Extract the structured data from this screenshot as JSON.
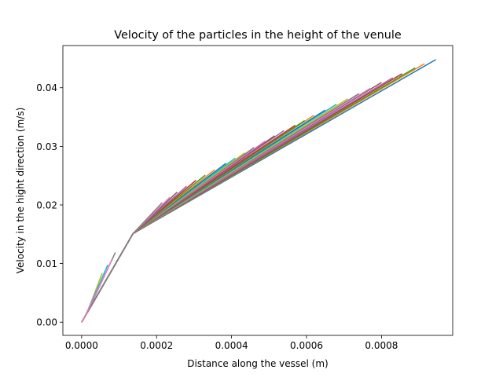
{
  "chart_data": {
    "type": "line",
    "title": "Velocity of the particles in the height of the venule",
    "xlabel": "Distance along the vessel (m)",
    "ylabel": "Velocity in the hight direction (m/s)",
    "xlim": [
      -5e-05,
      0.00099
    ],
    "ylim": [
      -0.00225,
      0.0472
    ],
    "xticks": [
      0,
      0.0002,
      0.0004,
      0.0006,
      0.0008
    ],
    "xtick_labels": [
      "0.0000",
      "0.0002",
      "0.0004",
      "0.0006",
      "0.0008"
    ],
    "yticks": [
      0,
      0.01,
      0.02,
      0.03,
      0.04
    ],
    "ytick_labels": [
      "0.00",
      "0.01",
      "0.02",
      "0.03",
      "0.04"
    ],
    "grid": false,
    "legend": "none",
    "colors": [
      "#1f77b4",
      "#ff7f0e",
      "#2ca02c",
      "#d62728",
      "#9467bd",
      "#8c564b",
      "#e377c2",
      "#7f7f7f",
      "#bcbd22",
      "#17becf"
    ],
    "short_series": [
      {
        "color_index": 7,
        "x": [
          0,
          1.4e-05,
          9e-05
        ],
        "y": [
          0,
          0.0015,
          0.0119
        ]
      },
      {
        "color_index": 8,
        "x": [
          0,
          1.4e-05,
          5.5e-05
        ],
        "y": [
          0,
          0.0015,
          0.0084
        ]
      },
      {
        "color_index": 9,
        "x": [
          0,
          1.2e-05,
          7e-05
        ],
        "y": [
          0,
          0.0014,
          0.0098
        ]
      },
      {
        "color_index": 6,
        "x": [
          0,
          1.2e-05,
          8e-05
        ],
        "y": [
          0,
          0.0014,
          0.0105
        ]
      }
    ],
    "long_series": [
      {
        "color_index": 0,
        "end": [
          0.000945,
          0.0448
        ]
      },
      {
        "color_index": 1,
        "end": [
          0.000915,
          0.0441
        ]
      },
      {
        "color_index": 2,
        "end": [
          0.00089,
          0.0434
        ]
      },
      {
        "color_index": 3,
        "end": [
          0.000855,
          0.0424
        ]
      },
      {
        "color_index": 4,
        "end": [
          0.00083,
          0.0417
        ]
      },
      {
        "color_index": 5,
        "end": [
          0.0008,
          0.0409
        ]
      },
      {
        "color_index": 6,
        "end": [
          0.00077,
          0.0399
        ]
      },
      {
        "color_index": 7,
        "end": [
          0.00074,
          0.039
        ]
      },
      {
        "color_index": 8,
        "end": [
          0.00071,
          0.0381
        ]
      },
      {
        "color_index": 9,
        "end": [
          0.00068,
          0.0372
        ]
      },
      {
        "color_index": 0,
        "end": [
          0.00065,
          0.0362
        ]
      },
      {
        "color_index": 1,
        "end": [
          0.00062,
          0.0353
        ]
      },
      {
        "color_index": 2,
        "end": [
          0.000595,
          0.0344
        ]
      },
      {
        "color_index": 3,
        "end": [
          0.00057,
          0.0336
        ]
      },
      {
        "color_index": 4,
        "end": [
          0.00054,
          0.0327
        ]
      },
      {
        "color_index": 5,
        "end": [
          0.000515,
          0.0318
        ]
      },
      {
        "color_index": 6,
        "end": [
          0.00049,
          0.0309
        ]
      },
      {
        "color_index": 7,
        "end": [
          0.00046,
          0.0298
        ]
      },
      {
        "color_index": 8,
        "end": [
          0.000435,
          0.0289
        ]
      },
      {
        "color_index": 9,
        "end": [
          0.00041,
          0.028
        ]
      },
      {
        "color_index": 0,
        "end": [
          0.000385,
          0.0271
        ]
      },
      {
        "color_index": 1,
        "end": [
          0.000355,
          0.026
        ]
      },
      {
        "color_index": 2,
        "end": [
          0.00033,
          0.0251
        ]
      },
      {
        "color_index": 3,
        "end": [
          0.000305,
          0.0242
        ]
      },
      {
        "color_index": 4,
        "end": [
          0.00028,
          0.0232
        ]
      },
      {
        "color_index": 5,
        "end": [
          0.000255,
          0.0222
        ]
      },
      {
        "color_index": 6,
        "end": [
          0.000235,
          0.0213
        ]
      },
      {
        "color_index": 7,
        "end": [
          0.000215,
          0.0204
        ]
      }
    ],
    "shared_path": {
      "x": [
        0,
        1.4e-05,
        0.000137
      ],
      "y": [
        0,
        0.0015,
        0.0151
      ]
    }
  }
}
